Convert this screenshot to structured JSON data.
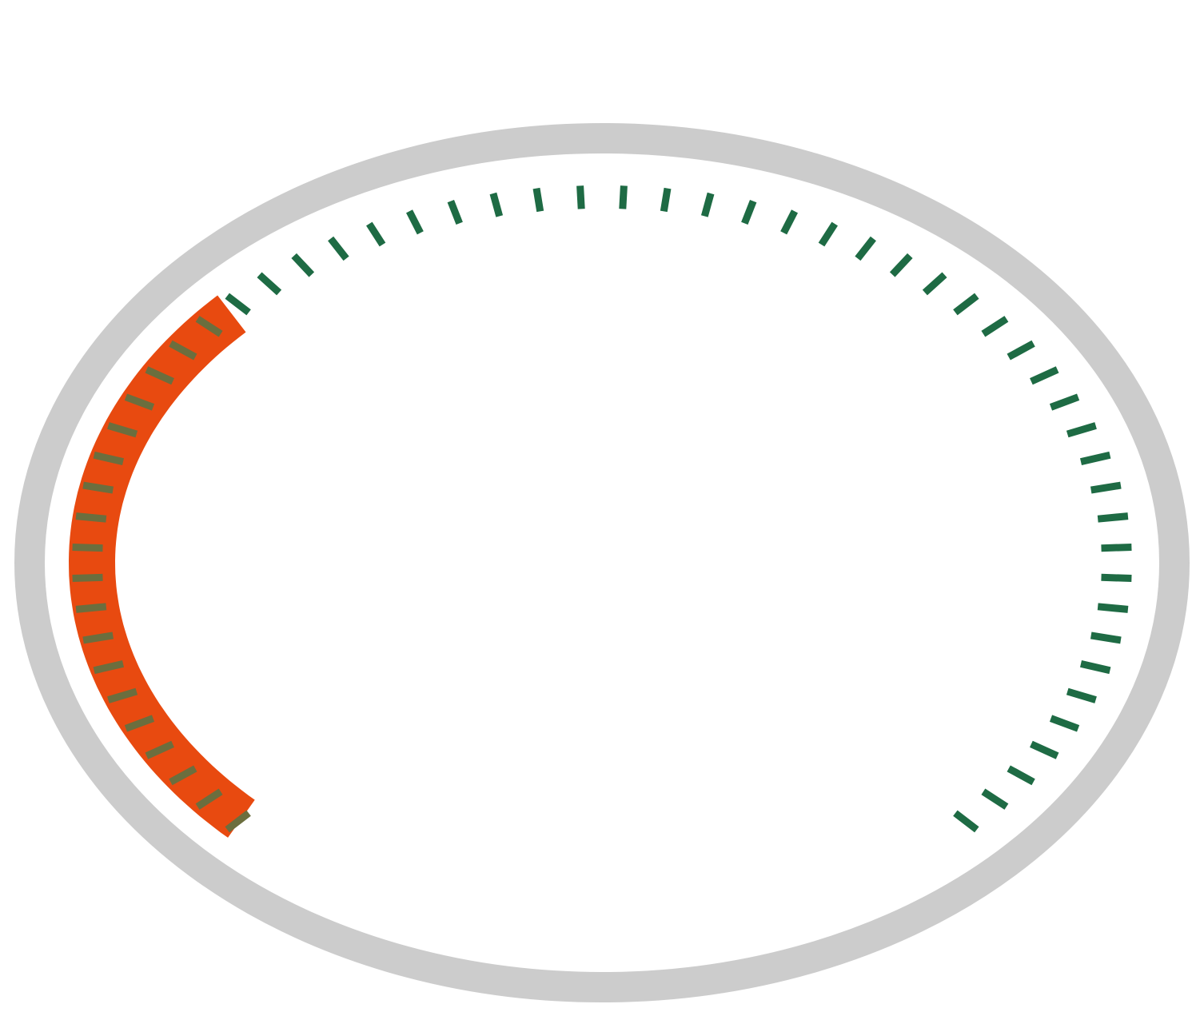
{
  "gauge": {
    "ticks_total": 58,
    "ticks_filled": 19,
    "value_fraction": 0.3276,
    "sweep_degrees": 270,
    "colors": {
      "background": "#ffffff",
      "ring": "#cccccc",
      "progress": "#e84a10",
      "tick": "#1e6b44",
      "tick_over_progress": "#6b6e3e"
    }
  }
}
